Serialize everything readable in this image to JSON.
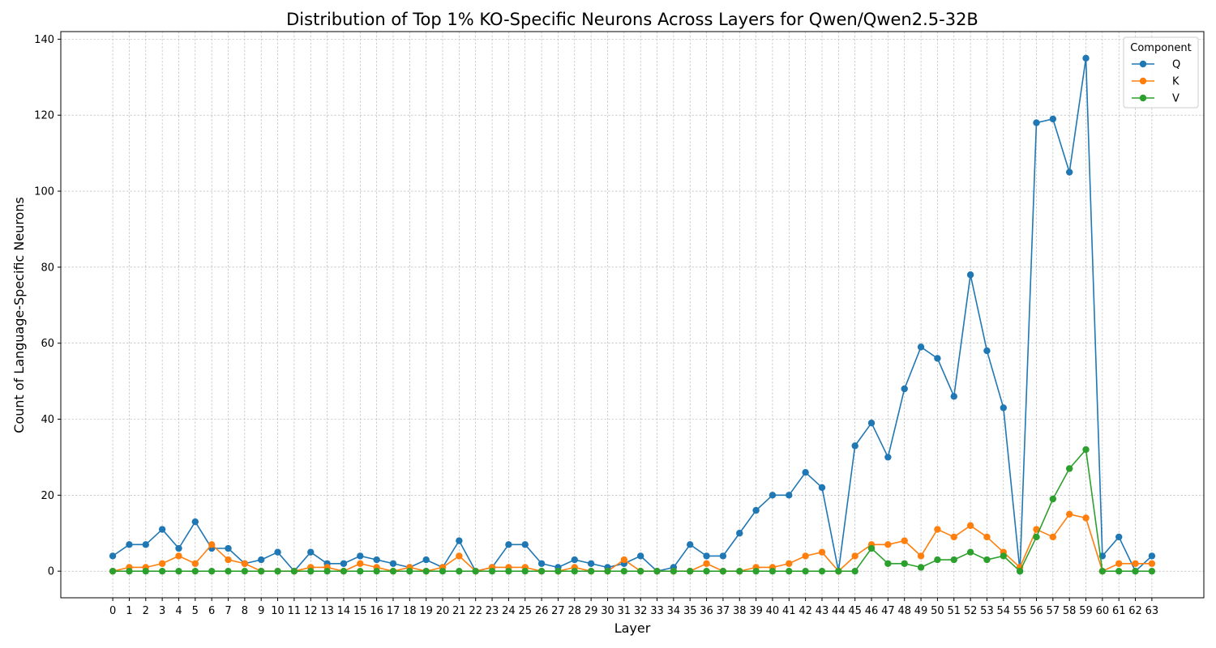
{
  "chart_data": {
    "type": "line",
    "title": "Distribution of Top 1% KO-Specific Neurons Across Layers for Qwen/Qwen2.5-32B",
    "xlabel": "Layer",
    "ylabel": "Count of Language-Specific Neurons",
    "x": [
      0,
      1,
      2,
      3,
      4,
      5,
      6,
      7,
      8,
      9,
      10,
      11,
      12,
      13,
      14,
      15,
      16,
      17,
      18,
      19,
      20,
      21,
      22,
      23,
      24,
      25,
      26,
      27,
      28,
      29,
      30,
      31,
      32,
      33,
      34,
      35,
      36,
      37,
      38,
      39,
      40,
      41,
      42,
      43,
      44,
      45,
      46,
      47,
      48,
      49,
      50,
      51,
      52,
      53,
      54,
      55,
      56,
      57,
      58,
      59,
      60,
      61,
      62,
      63
    ],
    "ylim": [
      -7,
      142
    ],
    "yticks": [
      0,
      20,
      40,
      60,
      80,
      100,
      120,
      140
    ],
    "grid": true,
    "legend": {
      "title": "Component",
      "position": "top-right"
    },
    "series": [
      {
        "name": "Q",
        "color": "#1f77b4",
        "values": [
          4,
          7,
          7,
          11,
          6,
          13,
          6,
          6,
          2,
          3,
          5,
          0,
          5,
          2,
          2,
          4,
          3,
          2,
          1,
          3,
          1,
          8,
          0,
          1,
          7,
          7,
          2,
          1,
          3,
          2,
          1,
          2,
          4,
          0,
          1,
          7,
          4,
          4,
          10,
          16,
          20,
          20,
          26,
          22,
          0,
          33,
          39,
          30,
          48,
          59,
          56,
          46,
          78,
          58,
          43,
          0,
          118,
          119,
          105,
          135,
          4,
          9,
          0,
          4
        ]
      },
      {
        "name": "K",
        "color": "#ff7f0e",
        "values": [
          0,
          1,
          1,
          2,
          4,
          2,
          7,
          3,
          2,
          0,
          0,
          0,
          1,
          1,
          0,
          2,
          1,
          0,
          1,
          0,
          1,
          4,
          0,
          1,
          1,
          1,
          0,
          0,
          1,
          0,
          0,
          3,
          0,
          0,
          0,
          0,
          2,
          0,
          0,
          1,
          1,
          2,
          4,
          5,
          0,
          4,
          7,
          7,
          8,
          4,
          11,
          9,
          12,
          9,
          5,
          1,
          11,
          9,
          15,
          14,
          0,
          2,
          2,
          2
        ]
      },
      {
        "name": "V",
        "color": "#2ca02c",
        "values": [
          0,
          0,
          0,
          0,
          0,
          0,
          0,
          0,
          0,
          0,
          0,
          0,
          0,
          0,
          0,
          0,
          0,
          0,
          0,
          0,
          0,
          0,
          0,
          0,
          0,
          0,
          0,
          0,
          0,
          0,
          0,
          0,
          0,
          0,
          0,
          0,
          0,
          0,
          0,
          0,
          0,
          0,
          0,
          0,
          0,
          0,
          6,
          2,
          2,
          1,
          3,
          3,
          5,
          3,
          4,
          0,
          9,
          19,
          27,
          32,
          0,
          0,
          0,
          0
        ]
      }
    ]
  }
}
